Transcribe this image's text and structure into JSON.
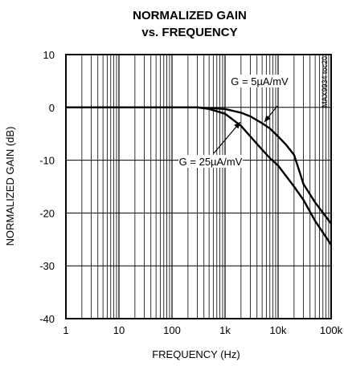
{
  "chart_data": {
    "type": "line",
    "title_line1": "NORMALIZED GAIN",
    "title_line2": "vs. FREQUENCY",
    "xlabel": "FREQUENCY (Hz)",
    "ylabel": "NORMALIZED GAIN (dB)",
    "x_scale": "log",
    "xlim": [
      1,
      100000
    ],
    "ylim": [
      -40,
      10
    ],
    "x_ticks": [
      {
        "value": 1,
        "label": "1"
      },
      {
        "value": 10,
        "label": "10"
      },
      {
        "value": 100,
        "label": "100"
      },
      {
        "value": 1000,
        "label": "1k"
      },
      {
        "value": 10000,
        "label": "10k"
      },
      {
        "value": 100000,
        "label": "100k"
      }
    ],
    "y_ticks": [
      {
        "value": 10,
        "label": "10"
      },
      {
        "value": 0,
        "label": "0"
      },
      {
        "value": -10,
        "label": "-10"
      },
      {
        "value": -20,
        "label": "-20"
      },
      {
        "value": -30,
        "label": "-30"
      },
      {
        "value": -40,
        "label": "-40"
      }
    ],
    "grid": true,
    "part_code": "MAX9934 toc20",
    "series": [
      {
        "name": "G = 5µA/mV",
        "x": [
          1,
          10,
          100,
          300,
          1000,
          2000,
          3000,
          5000,
          7000,
          10000,
          14000,
          20000,
          25000,
          30000,
          50000,
          100000
        ],
        "y": [
          0,
          0,
          0,
          0,
          -0.3,
          -1.0,
          -1.7,
          -3.0,
          -4.0,
          -5.5,
          -7.0,
          -9.0,
          -12.0,
          -14.5,
          -18.0,
          -22.0
        ]
      },
      {
        "name": "G = 25µA/mV",
        "x": [
          1,
          10,
          100,
          300,
          500,
          1000,
          2000,
          3000,
          5000,
          7000,
          10000,
          20000,
          30000,
          50000,
          100000
        ],
        "y": [
          0,
          0,
          0,
          0,
          -0.3,
          -1.2,
          -3.5,
          -5.5,
          -8.0,
          -9.6,
          -11.0,
          -15.0,
          -17.5,
          -21.5,
          -26.0
        ]
      }
    ],
    "annotations": [
      {
        "text": "G = 5µA/mV",
        "series": 0
      },
      {
        "text": "G = 25µA/mV",
        "series": 1
      }
    ]
  }
}
